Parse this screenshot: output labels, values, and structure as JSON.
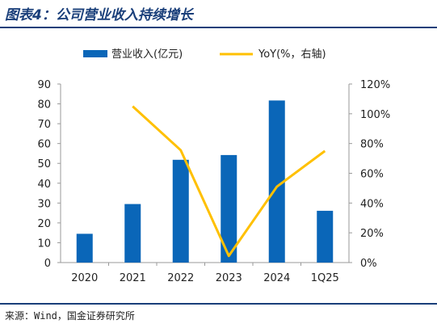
{
  "figure": {
    "title": "图表4：公司营业收入持续增长",
    "source": "来源：Wind，国金证券研究所"
  },
  "colors": {
    "bar": "#0a66b8",
    "line": "#ffc000",
    "title": "#1a3f7a",
    "axis": "#999999"
  },
  "chart_data": {
    "type": "bar",
    "categories": [
      "2020",
      "2021",
      "2022",
      "2023",
      "2024",
      "1Q25"
    ],
    "series": [
      {
        "name": "营业收入(亿元)",
        "type": "bar",
        "axis": "left",
        "values": [
          14.5,
          29.5,
          51.8,
          54.2,
          81.7,
          26.1
        ]
      },
      {
        "name": "YoY(%，右轴)",
        "type": "line",
        "axis": "right",
        "values": [
          null,
          105,
          75.5,
          4.5,
          51,
          75
        ]
      }
    ],
    "y_left": {
      "min": 0,
      "max": 90,
      "ticks": [
        0,
        10,
        20,
        30,
        40,
        50,
        60,
        70,
        80,
        90
      ]
    },
    "y_right": {
      "min": 0,
      "max": 120,
      "ticks": [
        "0%",
        "20%",
        "40%",
        "60%",
        "80%",
        "100%",
        "120%"
      ]
    },
    "legend_position": "top",
    "grid": false
  }
}
